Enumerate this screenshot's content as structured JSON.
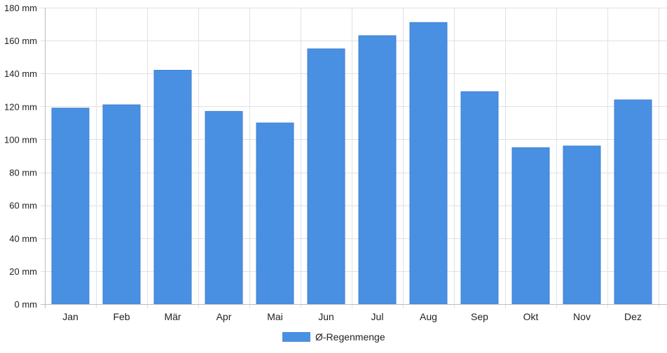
{
  "chart_data": {
    "type": "bar",
    "categories": [
      "Jan",
      "Feb",
      "Mär",
      "Apr",
      "Mai",
      "Jun",
      "Jul",
      "Aug",
      "Sep",
      "Okt",
      "Nov",
      "Dez"
    ],
    "series": [
      {
        "name": "Ø-Regenmenge",
        "values": [
          119,
          121,
          142,
          117,
          110,
          155,
          163,
          171,
          129,
          95,
          96,
          124
        ],
        "color": "#4a90e2"
      }
    ],
    "ylim": [
      0,
      180
    ],
    "yticks": [
      0,
      20,
      40,
      60,
      80,
      100,
      120,
      140,
      160,
      180
    ],
    "y_tick_suffix": " mm",
    "grid": true,
    "legend_position": "bottom-center"
  }
}
